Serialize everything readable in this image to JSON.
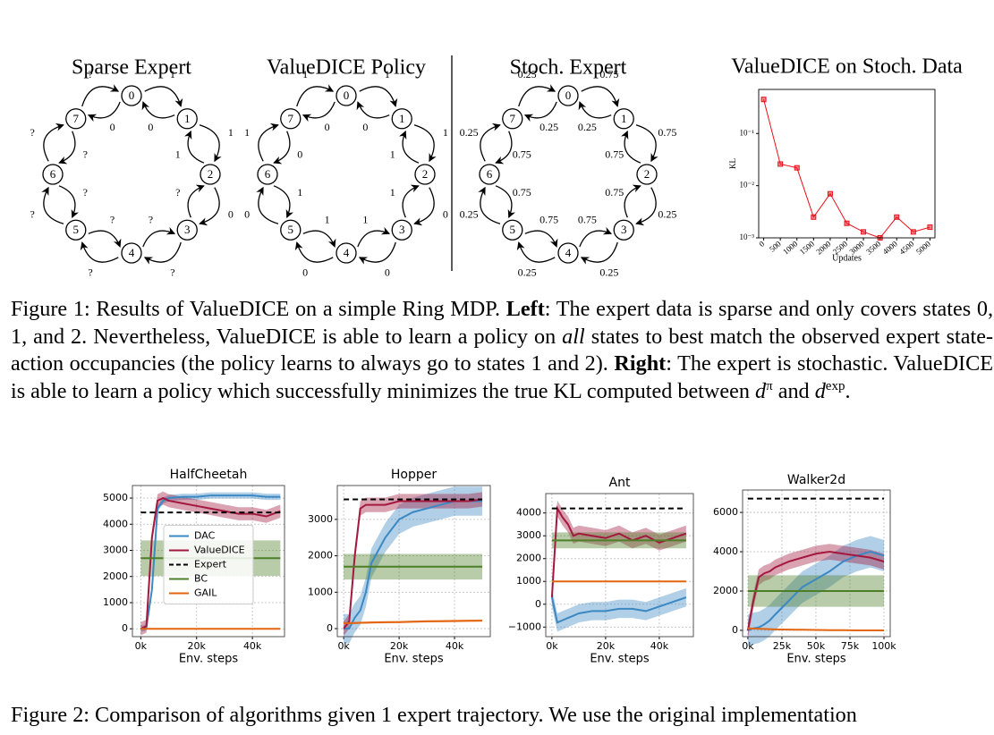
{
  "rings": [
    {
      "title": "Sparse Expert",
      "nodes": [
        "0",
        "1",
        "2",
        "3",
        "4",
        "5",
        "6",
        "7"
      ],
      "edges": [
        [
          "1",
          "0"
        ],
        [
          "1",
          "1"
        ],
        [
          "0",
          "?"
        ],
        [
          "?",
          "?"
        ],
        [
          "?",
          "?"
        ],
        [
          "?",
          "?"
        ],
        [
          "?",
          "?"
        ],
        [
          "?",
          "0"
        ]
      ]
    },
    {
      "title": "ValueDICE Policy",
      "nodes": [
        "0",
        "1",
        "2",
        "3",
        "4",
        "5",
        "6",
        "7"
      ],
      "edges": [
        [
          "1",
          "0"
        ],
        [
          "1",
          "1"
        ],
        [
          "0",
          "1"
        ],
        [
          "0",
          "1"
        ],
        [
          "0",
          "1"
        ],
        [
          "0",
          "1"
        ],
        [
          "1",
          "0"
        ],
        [
          "1",
          "0"
        ]
      ]
    },
    {
      "title": "Stoch. Expert",
      "nodes": [
        "0",
        "1",
        "2",
        "3",
        "4",
        "5",
        "6",
        "7"
      ],
      "edges": [
        [
          "0.75",
          "0.25"
        ],
        [
          "0.75",
          "0.75"
        ],
        [
          "0.25",
          "0.75"
        ],
        [
          "0.25",
          "0.75"
        ],
        [
          "0.25",
          "0.75"
        ],
        [
          "0.25",
          "0.75"
        ],
        [
          "0.25",
          "0.75"
        ],
        [
          "0.25",
          "0.25"
        ]
      ]
    }
  ],
  "chart_data": [
    {
      "type": "line",
      "title": "ValueDICE on Stoch. Data",
      "xlabel": "Updates",
      "ylabel": "KL",
      "log_y": true,
      "grid": false,
      "markers": true,
      "x": [
        0,
        500,
        1000,
        1500,
        2000,
        2500,
        3000,
        3500,
        4000,
        4500,
        5000
      ],
      "series": [
        {
          "color": "#e8101a",
          "values": [
            0.45,
            0.026,
            0.022,
            0.0025,
            0.007,
            0.0019,
            0.0013,
            0.001,
            0.0025,
            0.0013,
            0.0016
          ]
        }
      ],
      "xlim": [
        -150,
        5150
      ],
      "ylim": [
        0.001,
        0.7
      ],
      "xticks": [
        0,
        500,
        1000,
        1500,
        2000,
        2500,
        3000,
        3500,
        4000,
        4500,
        5000
      ],
      "yticks": [
        {
          "value": 0.001,
          "label": "10⁻³"
        },
        {
          "value": 0.01,
          "label": "10⁻²"
        },
        {
          "value": 0.1,
          "label": "10⁻¹"
        }
      ]
    },
    {
      "type": "line",
      "title": "HalfCheetah",
      "xlabel": "Env. steps",
      "grid": true,
      "legend": "center left",
      "x": [
        0,
        2000,
        4000,
        6000,
        8000,
        10000,
        15000,
        20000,
        25000,
        30000,
        35000,
        40000,
        45000,
        50000
      ],
      "series": [
        {
          "name": "DAC",
          "color": "#3b88c2",
          "spread": 120,
          "values": [
            0,
            50,
            1500,
            4600,
            4900,
            5000,
            5050,
            5050,
            5100,
            5100,
            5100,
            5100,
            5050,
            5050
          ]
        },
        {
          "name": "ValueDICE",
          "color": "#a3183e",
          "spread": 250,
          "values": [
            0,
            100,
            3500,
            4900,
            5000,
            4900,
            4800,
            4700,
            4600,
            4500,
            4400,
            4400,
            4300,
            4500
          ]
        },
        {
          "name": "Expert",
          "color": "#000000",
          "dash": true,
          "values": [
            4450,
            4450,
            4450,
            4450,
            4450,
            4450,
            4450,
            4450,
            4450,
            4450,
            4450,
            4450,
            4450,
            4450
          ]
        },
        {
          "name": "BC",
          "color": "#4d7f28",
          "spread": 680,
          "values": [
            2700,
            2700,
            2700,
            2700,
            2700,
            2700,
            2700,
            2700,
            2700,
            2700,
            2700,
            2700,
            2700,
            2700
          ]
        },
        {
          "name": "GAIL",
          "color": "#e3650f",
          "values": [
            0,
            0,
            0,
            0,
            0,
            0,
            0,
            0,
            0,
            0,
            0,
            0,
            0,
            0
          ]
        }
      ],
      "xlim": [
        -3000,
        51500
      ],
      "ylim": [
        -300,
        5480
      ],
      "xticks": [
        {
          "value": 0,
          "label": "0k"
        },
        {
          "value": 20000,
          "label": "20k"
        },
        {
          "value": 40000,
          "label": "40k"
        }
      ],
      "yticks": [
        0,
        1000,
        2000,
        3000,
        4000,
        5000
      ]
    },
    {
      "type": "line",
      "title": "Hopper",
      "xlabel": "Env. steps",
      "grid": true,
      "x": [
        0,
        2000,
        4000,
        6000,
        8000,
        10000,
        15000,
        20000,
        25000,
        30000,
        35000,
        40000,
        45000,
        50000
      ],
      "series": [
        {
          "name": "DAC",
          "color": "#3b88c2",
          "spread": 400,
          "values": [
            0,
            0,
            300,
            500,
            1000,
            1800,
            2500,
            3000,
            3200,
            3300,
            3400,
            3500,
            3500,
            3500
          ]
        },
        {
          "name": "ValueDICE",
          "color": "#a3183e",
          "spread": 200,
          "values": [
            0,
            200,
            2000,
            3300,
            3400,
            3400,
            3400,
            3500,
            3500,
            3500,
            3500,
            3500,
            3500,
            3550
          ]
        },
        {
          "name": "Expert",
          "color": "#000000",
          "dash": true,
          "values": [
            3550,
            3550,
            3550,
            3550,
            3550,
            3550,
            3550,
            3550,
            3550,
            3550,
            3550,
            3550,
            3550,
            3550
          ]
        },
        {
          "name": "BC",
          "color": "#4d7f28",
          "spread": 350,
          "values": [
            1700,
            1700,
            1700,
            1700,
            1700,
            1700,
            1700,
            1700,
            1700,
            1700,
            1700,
            1700,
            1700,
            1700
          ]
        },
        {
          "name": "GAIL",
          "color": "#e3650f",
          "spread": 30,
          "values": [
            150,
            150,
            155,
            160,
            165,
            170,
            175,
            180,
            190,
            200,
            205,
            210,
            215,
            220
          ]
        }
      ],
      "xlim": [
        -2300,
        52900
      ],
      "ylim": [
        -220,
        3930
      ],
      "xticks": [
        {
          "value": 0,
          "label": "0k"
        },
        {
          "value": 20000,
          "label": "20k"
        },
        {
          "value": 40000,
          "label": "40k"
        }
      ],
      "yticks": [
        0,
        1000,
        2000,
        3000
      ]
    },
    {
      "type": "line",
      "title": "Ant",
      "xlabel": "Env. steps",
      "grid": true,
      "x": [
        0,
        2000,
        4000,
        6000,
        8000,
        10000,
        15000,
        20000,
        25000,
        30000,
        35000,
        40000,
        45000,
        50000
      ],
      "series": [
        {
          "name": "DAC",
          "color": "#3b88c2",
          "spread": 400,
          "values": [
            300,
            -800,
            -700,
            -600,
            -500,
            -400,
            -300,
            -300,
            -200,
            -200,
            -300,
            -100,
            100,
            300
          ]
        },
        {
          "name": "ValueDICE",
          "color": "#a3183e",
          "spread": 350,
          "values": [
            300,
            4200,
            3800,
            3500,
            3000,
            3100,
            3000,
            2900,
            3100,
            2800,
            3000,
            2700,
            2900,
            3100
          ]
        },
        {
          "name": "Expert",
          "color": "#000000",
          "dash": true,
          "values": [
            4200,
            4200,
            4200,
            4200,
            4200,
            4200,
            4200,
            4200,
            4200,
            4200,
            4200,
            4200,
            4200,
            4200
          ]
        },
        {
          "name": "BC",
          "color": "#4d7f28",
          "spread": 350,
          "values": [
            2800,
            2800,
            2800,
            2800,
            2800,
            2800,
            2800,
            2800,
            2800,
            2800,
            2800,
            2800,
            2800,
            2800
          ]
        },
        {
          "name": "GAIL",
          "color": "#e3650f",
          "values": [
            1000,
            1000,
            1000,
            1000,
            1000,
            1000,
            1000,
            1000,
            1000,
            1000,
            1000,
            1000,
            1000,
            1000
          ]
        }
      ],
      "xlim": [
        -2300,
        52700
      ],
      "ylim": [
        -1420,
        4850
      ],
      "xticks": [
        {
          "value": 0,
          "label": "0k"
        },
        {
          "value": 20000,
          "label": "20k"
        },
        {
          "value": 40000,
          "label": "40k"
        }
      ],
      "yticks": [
        {
          "value": -1000,
          "label": "−1000"
        },
        0,
        1000,
        2000,
        3000,
        4000
      ]
    },
    {
      "type": "line",
      "title": "Walker2d",
      "xlabel": "Env. steps",
      "grid": true,
      "x": [
        0,
        4000,
        8000,
        12000,
        16000,
        20000,
        30000,
        40000,
        50000,
        60000,
        70000,
        80000,
        90000,
        100000
      ],
      "series": [
        {
          "name": "DAC",
          "color": "#3b88c2",
          "spread": 800,
          "values": [
            0,
            100,
            150,
            300,
            500,
            800,
            1500,
            2200,
            2600,
            3000,
            3500,
            3800,
            4000,
            3800
          ]
        },
        {
          "name": "ValueDICE",
          "color": "#a3183e",
          "spread": 400,
          "values": [
            0,
            1500,
            2700,
            2900,
            3000,
            3200,
            3500,
            3700,
            3900,
            4000,
            3900,
            3800,
            3700,
            3500
          ]
        },
        {
          "name": "Expert",
          "color": "#000000",
          "dash": true,
          "values": [
            6700,
            6700,
            6700,
            6700,
            6700,
            6700,
            6700,
            6700,
            6700,
            6700,
            6700,
            6700,
            6700,
            6700
          ]
        },
        {
          "name": "BC",
          "color": "#4d7f28",
          "spread": 800,
          "values": [
            2000,
            2000,
            2000,
            2000,
            2000,
            2000,
            2000,
            2000,
            2000,
            2000,
            2000,
            2000,
            2000,
            2000
          ]
        },
        {
          "name": "GAIL",
          "color": "#e3650f",
          "values": [
            100,
            90,
            80,
            70,
            60,
            50,
            40,
            30,
            20,
            10,
            10,
            0,
            0,
            0
          ]
        }
      ],
      "xlim": [
        -3900,
        104600
      ],
      "ylim": [
        -320,
        7140
      ],
      "xticks": [
        {
          "value": 0,
          "label": "0k"
        },
        {
          "value": 25000,
          "label": "25k"
        },
        {
          "value": 50000,
          "label": "50k"
        },
        {
          "value": 75000,
          "label": "75k"
        },
        {
          "value": 100000,
          "label": "100k"
        }
      ],
      "yticks": [
        0,
        2000,
        4000,
        6000
      ]
    }
  ],
  "caption1": [
    {
      "text": "Figure 1: Results of ValueDICE on a simple Ring MDP. "
    },
    {
      "text": "Left",
      "style": "bold"
    },
    {
      "text": ": The expert data is sparse and only covers states 0, 1, and 2. Nevertheless, ValueDICE is able to learn a policy on "
    },
    {
      "text": "all",
      "style": "italic"
    },
    {
      "text": " states to best match the observed expert state-action occupancies (the policy learns to always go to states 1 and 2). "
    },
    {
      "text": "Right",
      "style": "bold"
    },
    {
      "text": ": The expert is stochastic. ValueDICE is able to learn a policy which successfully minimizes the true KL computed between "
    },
    {
      "text": "d",
      "style": "italic"
    },
    {
      "text": "π",
      "style": "sup"
    },
    {
      "text": " and "
    },
    {
      "text": "d",
      "style": "italic"
    },
    {
      "text": "exp",
      "style": "sup"
    },
    {
      "text": "."
    }
  ],
  "caption2": "Figure 2: Comparison of algorithms given 1 expert trajectory. We use the original implementation"
}
